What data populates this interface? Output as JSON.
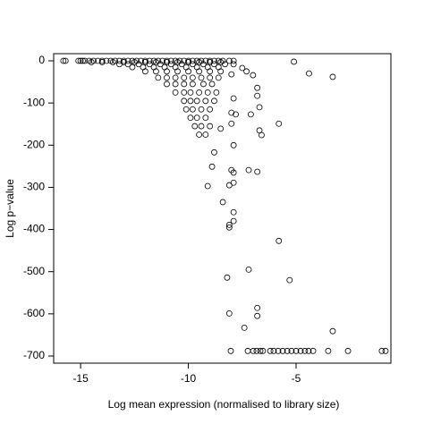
{
  "chart_data": {
    "type": "scatter",
    "x_label": "Log mean expression (normalised to library size)",
    "y_label": "Log p−value",
    "xlim": [
      -16.25,
      -0.6
    ],
    "ylim": [
      -717,
      17
    ],
    "xticks": [
      -15,
      -10,
      -5
    ],
    "yticks": [
      0,
      -100,
      -200,
      -300,
      -400,
      -500,
      -600,
      -700
    ],
    "color": "#000000",
    "x": [
      -15.8,
      -15.7,
      -15.1,
      -15.0,
      -14.9,
      -14.8,
      -14.6,
      -14.4,
      -14.2,
      -14.0,
      -13.8,
      -13.6,
      -13.4,
      -13.2,
      -13.0,
      -12.8,
      -12.6,
      -12.4,
      -12.2,
      -12.0,
      -11.8,
      -11.6,
      -11.4,
      -11.2,
      -11.0,
      -10.8,
      -10.6,
      -10.4,
      -10.2,
      -10.0,
      -9.8,
      -9.6,
      -9.4,
      -9.2,
      -9.0,
      -8.8,
      -8.6,
      -8.4,
      -8.1,
      -7.9,
      -14.5,
      -14.0,
      -13.5,
      -13.0,
      -12.5,
      -12.0,
      -11.5,
      -11.0,
      -10.5,
      -10.0,
      -9.5,
      -9.0,
      -8.5,
      -13.2,
      -12.8,
      -12.3,
      -11.8,
      -11.3,
      -10.8,
      -10.3,
      -9.8,
      -9.3,
      -8.8,
      -8.3,
      -12.6,
      -12.1,
      -11.6,
      -11.1,
      -10.6,
      -10.1,
      -9.6,
      -9.1,
      -8.6,
      -12.0,
      -11.5,
      -11.0,
      -10.5,
      -10.0,
      -9.5,
      -9.0,
      -8.5,
      -11.4,
      -11.0,
      -10.6,
      -10.2,
      -9.8,
      -9.4,
      -9.0,
      -8.6,
      -11.0,
      -10.6,
      -10.2,
      -9.8,
      -9.3,
      -8.9,
      -10.6,
      -10.2,
      -9.9,
      -9.5,
      -9.1,
      -8.7,
      -10.2,
      -9.9,
      -9.6,
      -9.2,
      -8.8,
      -10.1,
      -9.8,
      -9.4,
      -9.0,
      -9.9,
      -9.6,
      -9.2,
      -9.7,
      -9.4,
      -9.0,
      -9.5,
      -9.2,
      -5.1,
      -4.4,
      -3.3,
      -5.8,
      -6.6,
      -6.7,
      -6.8,
      -6.8,
      -6.7,
      -7.9,
      -7.5,
      -7.3,
      -7.0,
      -8.0,
      -7.9,
      -8.0,
      -7.8,
      -7.1,
      -8.0,
      -7.9,
      -8.5,
      -8.8,
      -8.9,
      -9.1,
      -8.0,
      -7.9,
      -7.2,
      -6.8,
      -8.1,
      -7.9,
      -8.4,
      -7.9,
      -7.9,
      -8.1,
      -8.1,
      -5.8,
      -7.2,
      -8.2,
      -5.3,
      -6.8,
      -6.8,
      -8.1,
      -7.4,
      -3.3,
      -8.03,
      -7.24,
      -6.99,
      -6.83,
      -6.66,
      -6.54,
      -6.2,
      -6.04,
      -5.83,
      -5.62,
      -5.41,
      -5.21,
      -5.0,
      -4.79,
      -4.59,
      -4.42,
      -4.21,
      -3.51,
      -2.59,
      -1.02,
      -0.85
    ],
    "values": [
      0,
      0,
      0,
      0,
      0,
      0,
      0,
      0,
      0,
      0,
      0,
      0,
      0,
      0,
      0,
      0,
      0,
      0,
      0,
      0,
      0,
      0,
      0,
      0,
      0,
      0,
      0,
      0,
      0,
      0,
      0,
      0,
      0,
      0,
      0,
      0,
      0,
      0,
      0,
      0,
      -3,
      -3,
      -3,
      -3,
      -3,
      -3,
      -3,
      -3,
      -3,
      -3,
      -3,
      -3,
      -3,
      -8,
      -8,
      -8,
      -8,
      -8,
      -8,
      -8,
      -8,
      -8,
      -8,
      -8,
      -15,
      -15,
      -15,
      -15,
      -15,
      -15,
      -15,
      -15,
      -15,
      -25,
      -25,
      -25,
      -25,
      -25,
      -25,
      -25,
      -25,
      -40,
      -40,
      -40,
      -40,
      -40,
      -40,
      -40,
      -40,
      -55,
      -55,
      -55,
      -55,
      -55,
      -55,
      -75,
      -75,
      -75,
      -75,
      -75,
      -75,
      -95,
      -95,
      -95,
      -95,
      -95,
      -115,
      -115,
      -115,
      -115,
      -135,
      -135,
      -135,
      -155,
      -155,
      -155,
      -175,
      -175,
      -2,
      -30,
      -38,
      -149,
      -176,
      -165,
      -64,
      -83,
      -110,
      -8,
      -17,
      -25,
      -34,
      -32,
      -89,
      -123,
      -127,
      -127,
      -149,
      -200,
      -161,
      -217,
      -251,
      -297,
      -259,
      -265,
      -259,
      -263,
      -295,
      -289,
      -335,
      -359,
      -380,
      -389,
      -395,
      -427,
      -495,
      -514,
      -520,
      -586,
      -605,
      -599,
      -633,
      -641,
      -688,
      -688,
      -688,
      -688,
      -688,
      -688,
      -688,
      -688,
      -688,
      -688,
      -688,
      -688,
      -688,
      -688,
      -688,
      -688,
      -688,
      -688,
      -688,
      -688,
      -688
    ]
  }
}
